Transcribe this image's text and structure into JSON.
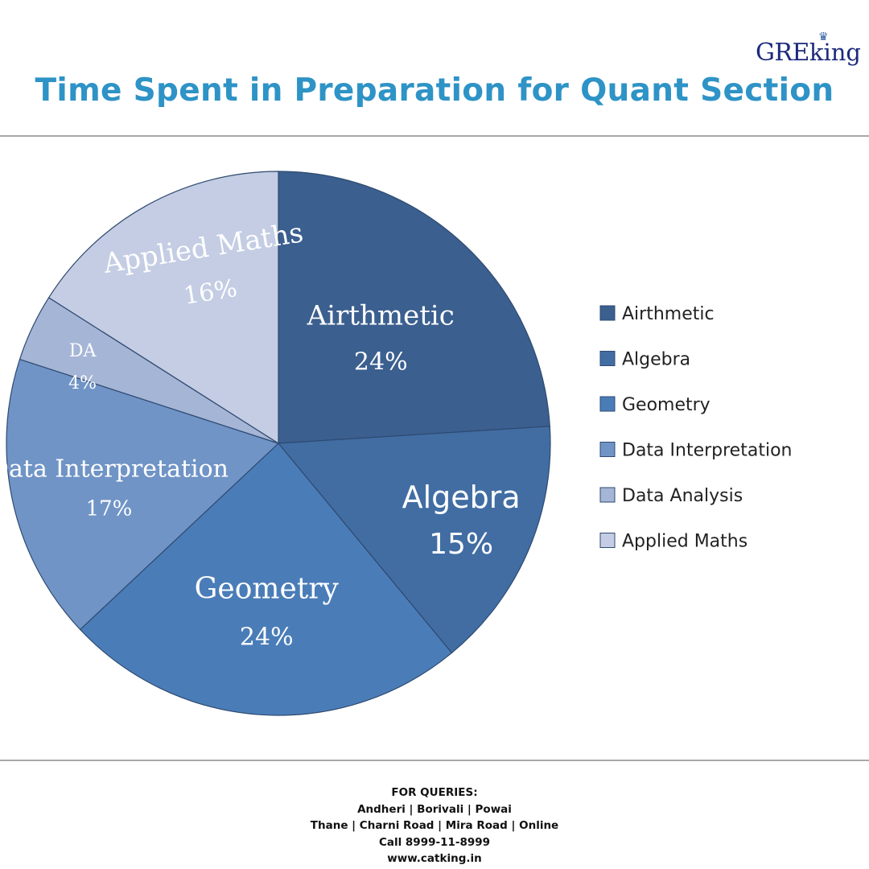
{
  "brand": {
    "logo_main": "GRE",
    "logo_suffix": "king",
    "crown_icon": "crown-icon"
  },
  "title": "Time Spent in Preparation for Quant Section",
  "chart_data": {
    "type": "pie",
    "title": "Time Spent in Preparation for Quant Section",
    "categories": [
      "Airthmetic",
      "Algebra",
      "Geometry",
      "Data Interpretation",
      "Data Analysis",
      "Applied Maths"
    ],
    "values": [
      24,
      15,
      24,
      17,
      4,
      16
    ],
    "slice_labels": [
      {
        "name": "Airthmetic",
        "value": "24%"
      },
      {
        "name": "Algebra",
        "value": "15%"
      },
      {
        "name": "Geometry",
        "value": "24%"
      },
      {
        "name": "Data Interpretation",
        "value": "17%"
      },
      {
        "name": "DA",
        "value": "4%"
      },
      {
        "name": "Applied Maths",
        "value": "16%"
      }
    ],
    "colors": [
      "#3b5f8f",
      "#416da3",
      "#4a7db8",
      "#7094c6",
      "#a5b5d6",
      "#c4cde3"
    ],
    "legend": [
      "Airthmetic",
      "Algebra",
      "Geometry",
      "Data Interpretation",
      "Data Analysis",
      "Applied Maths"
    ],
    "legend_position": "right",
    "start": "top",
    "direction": "clockwise"
  },
  "footer": {
    "heading": "FOR QUERIES:",
    "line1": "Andheri | Borivali | Powai",
    "line2": "Thane | Charni Road | Mira Road | Online",
    "line3": "Call 8999-11-8999",
    "line4": "www.catking.in"
  }
}
